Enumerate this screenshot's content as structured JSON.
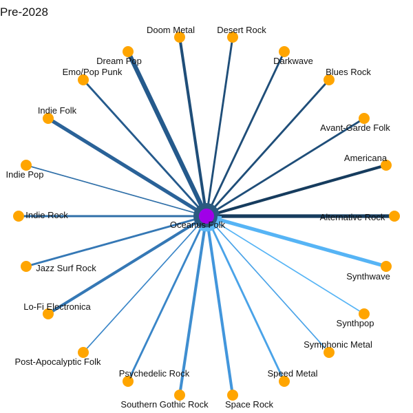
{
  "title": "Pre-2028",
  "center": {
    "label": "Oceanus Folk",
    "color": "#a000e8"
  },
  "node_color": "#ffa500",
  "nodes": [
    {
      "label": "Doom Metal",
      "weight": 3,
      "color": "#1f4e79"
    },
    {
      "label": "Desert Rock",
      "weight": 2,
      "color": "#1f4e79"
    },
    {
      "label": "Darkwave",
      "weight": 2,
      "color": "#1f4e79"
    },
    {
      "label": "Blues Rock",
      "weight": 2,
      "color": "#1f4e79"
    },
    {
      "label": "Avant-Garde Folk",
      "weight": 2,
      "color": "#1f4e79"
    },
    {
      "label": "Americana",
      "weight": 3,
      "color": "#163c5e"
    },
    {
      "label": "Alternative Rock",
      "weight": 4,
      "color": "#163c5e"
    },
    {
      "label": "Synthwave",
      "weight": 4,
      "color": "#56b4f5"
    },
    {
      "label": "Synthpop",
      "weight": 1,
      "color": "#56b4f5"
    },
    {
      "label": "Symphonic Metal",
      "weight": 1,
      "color": "#4aa3e8"
    },
    {
      "label": "Speed Metal",
      "weight": 2,
      "color": "#4aa3e8"
    },
    {
      "label": "Space Rock",
      "weight": 3,
      "color": "#4296dc"
    },
    {
      "label": "Southern Gothic Rock",
      "weight": 3,
      "color": "#3f8ed0"
    },
    {
      "label": "Psychedelic Rock",
      "weight": 2,
      "color": "#3a86c8"
    },
    {
      "label": "Post-Apocalyptic Folk",
      "weight": 1,
      "color": "#3a86c8"
    },
    {
      "label": "Lo-Fi Electronica",
      "weight": 3,
      "color": "#3578b5"
    },
    {
      "label": "Jazz Surf Rock",
      "weight": 2,
      "color": "#3578b5"
    },
    {
      "label": "Indie Rock",
      "weight": 2,
      "color": "#2f6fa8"
    },
    {
      "label": "Indie Pop",
      "weight": 1,
      "color": "#2f6fa8"
    },
    {
      "label": "Indie Folk",
      "weight": 4,
      "color": "#2a6298"
    },
    {
      "label": "Emo/Pop Punk",
      "weight": 2,
      "color": "#255a8c"
    },
    {
      "label": "Dream Pop",
      "weight": 5,
      "color": "#255a8c"
    }
  ]
}
